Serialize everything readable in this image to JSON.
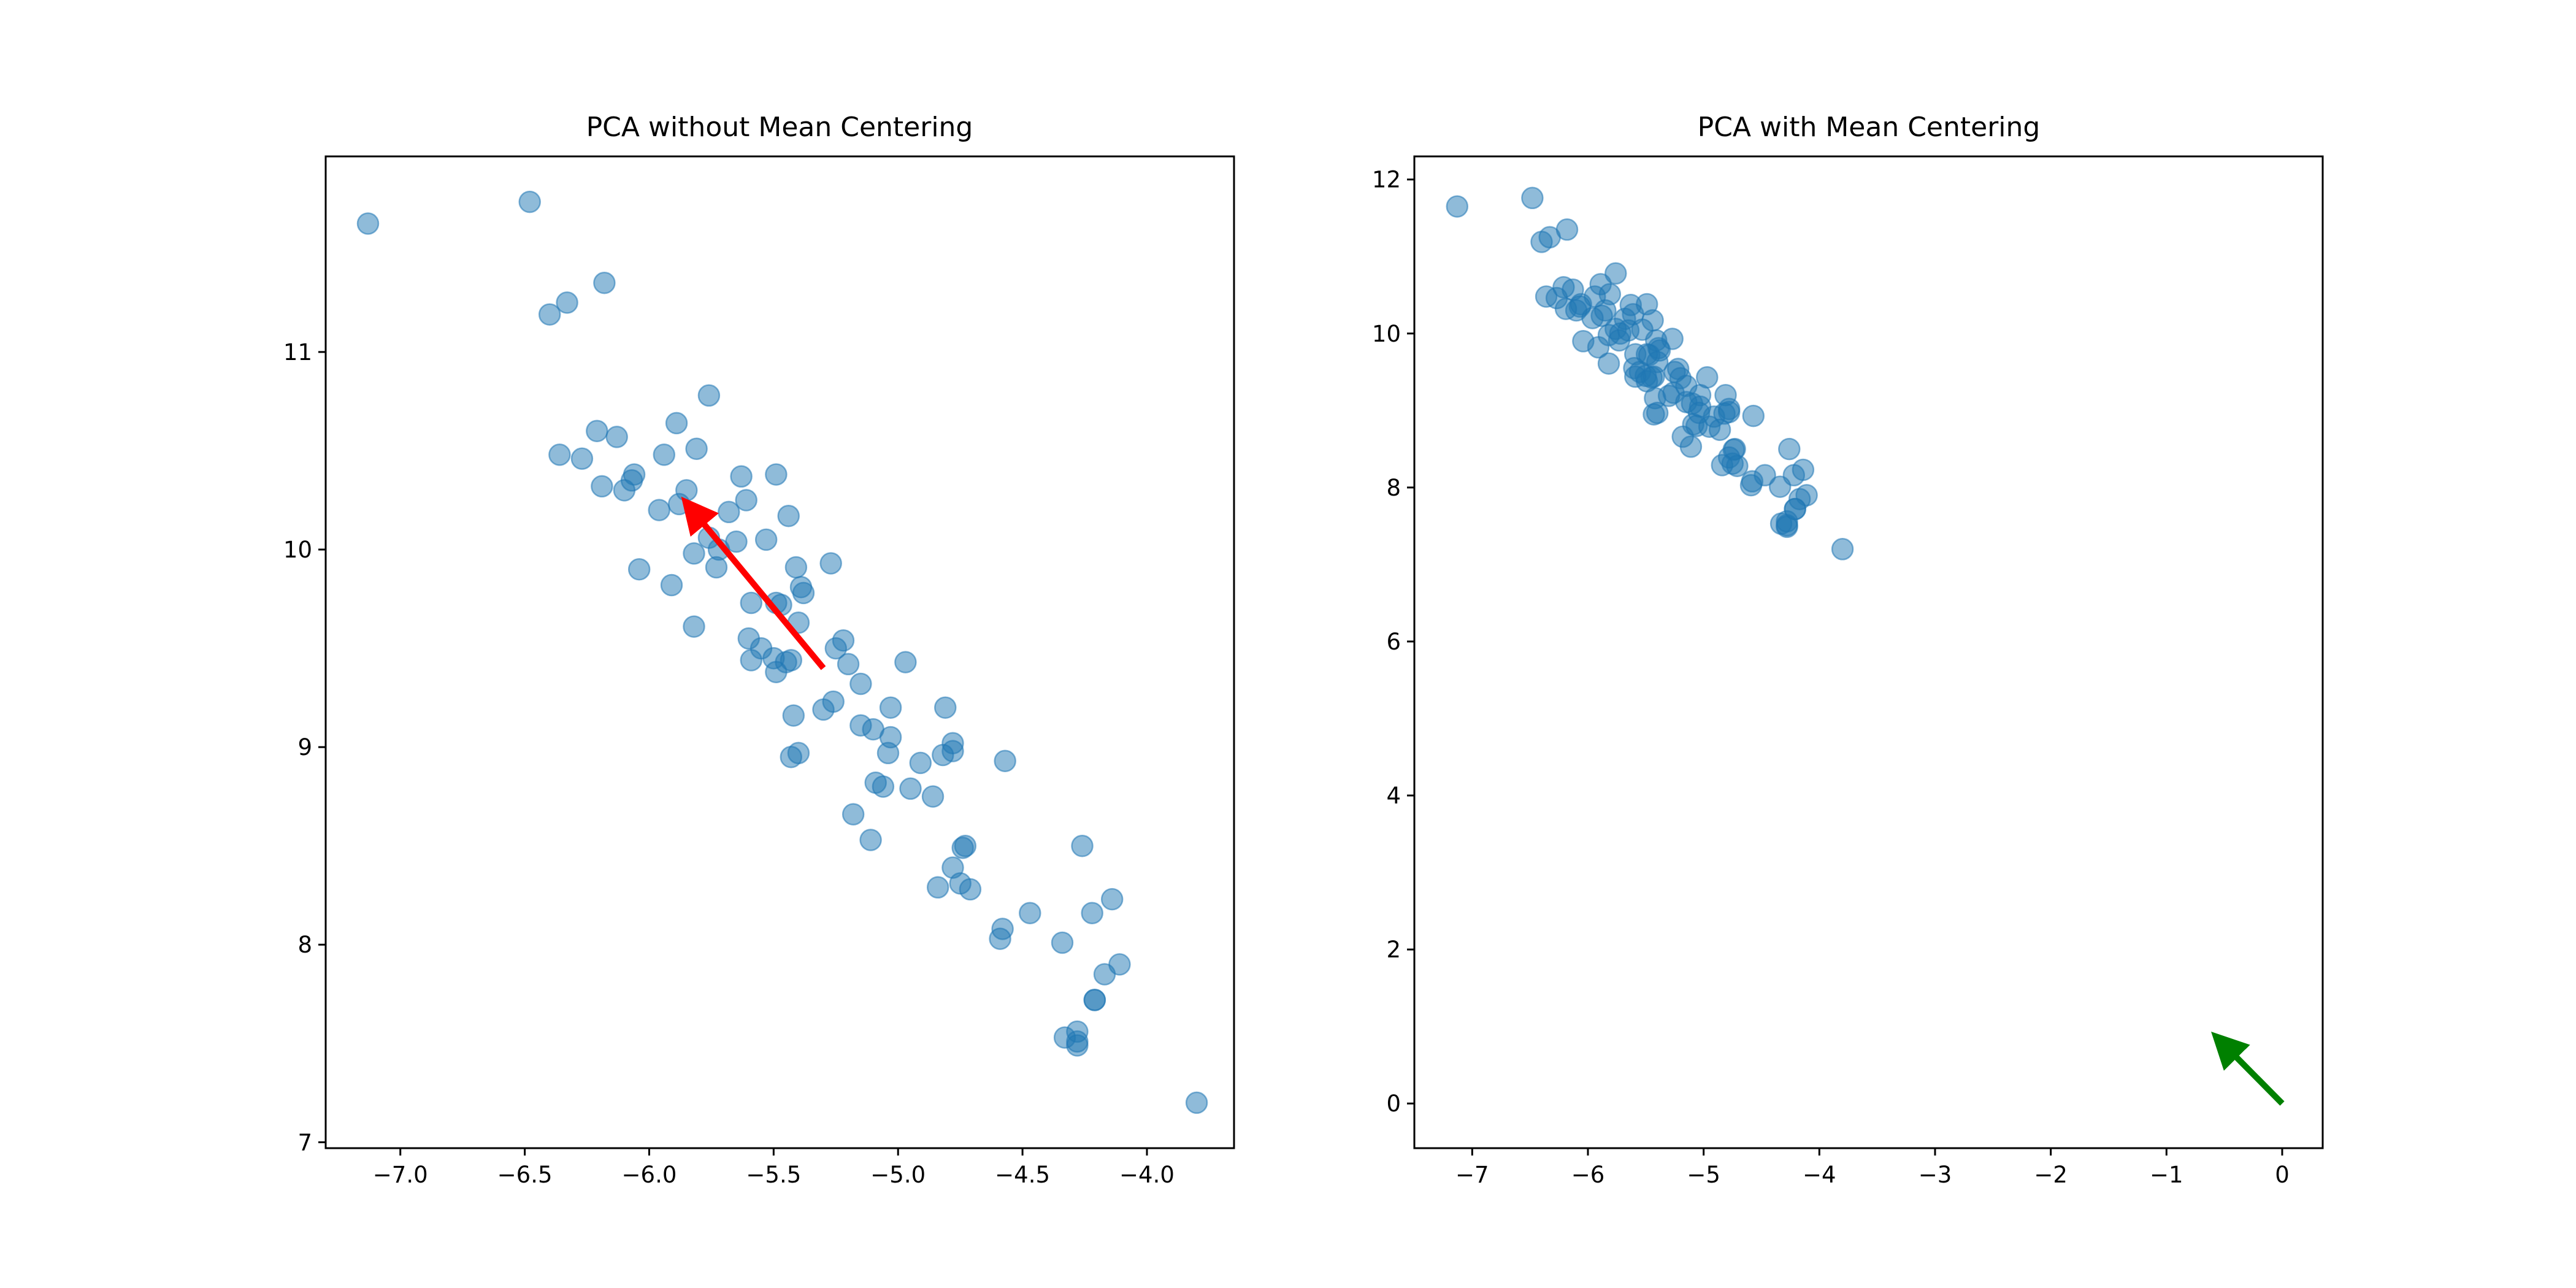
{
  "chart_data": [
    {
      "type": "scatter",
      "title": "PCA without Mean Centering",
      "xlabel": "",
      "ylabel": "",
      "xlim": [
        -7.3,
        -3.65
      ],
      "ylim": [
        6.97,
        11.99
      ],
      "xticks": [
        -7.0,
        -6.5,
        -6.0,
        -5.5,
        -5.0,
        -4.5,
        -4.0
      ],
      "xtick_labels": [
        "−7.0",
        "−6.5",
        "−6.0",
        "−5.5",
        "−5.0",
        "−4.5",
        "−4.0"
      ],
      "yticks": [
        7,
        8,
        9,
        10,
        11
      ],
      "ytick_labels": [
        "7",
        "8",
        "9",
        "10",
        "11"
      ],
      "grid": false,
      "point_color": "#1f77b4",
      "point_alpha": 0.5,
      "arrow": {
        "color": "#ff0000",
        "from": [
          -5.3,
          9.4
        ],
        "to": [
          -5.84,
          10.22
        ]
      },
      "points": [
        [
          -7.13,
          11.65
        ],
        [
          -6.48,
          11.76
        ],
        [
          -6.4,
          11.19
        ],
        [
          -6.33,
          11.25
        ],
        [
          -6.18,
          11.35
        ],
        [
          -5.76,
          10.78
        ],
        [
          -5.89,
          10.64
        ],
        [
          -6.21,
          10.6
        ],
        [
          -6.13,
          10.57
        ],
        [
          -5.81,
          10.51
        ],
        [
          -6.36,
          10.48
        ],
        [
          -6.27,
          10.46
        ],
        [
          -5.94,
          10.48
        ],
        [
          -6.06,
          10.38
        ],
        [
          -6.07,
          10.35
        ],
        [
          -6.1,
          10.3
        ],
        [
          -6.19,
          10.32
        ],
        [
          -5.63,
          10.37
        ],
        [
          -5.49,
          10.38
        ],
        [
          -5.85,
          10.3
        ],
        [
          -5.88,
          10.23
        ],
        [
          -5.61,
          10.25
        ],
        [
          -5.96,
          10.2
        ],
        [
          -5.68,
          10.19
        ],
        [
          -5.44,
          10.17
        ],
        [
          -5.76,
          10.06
        ],
        [
          -5.53,
          10.05
        ],
        [
          -5.65,
          10.04
        ],
        [
          -5.72,
          10.0
        ],
        [
          -5.82,
          9.98
        ],
        [
          -5.27,
          9.93
        ],
        [
          -6.04,
          9.9
        ],
        [
          -5.73,
          9.91
        ],
        [
          -5.41,
          9.91
        ],
        [
          -5.39,
          9.81
        ],
        [
          -5.38,
          9.78
        ],
        [
          -5.91,
          9.82
        ],
        [
          -5.59,
          9.73
        ],
        [
          -5.49,
          9.73
        ],
        [
          -5.47,
          9.72
        ],
        [
          -5.82,
          9.61
        ],
        [
          -5.4,
          9.63
        ],
        [
          -5.6,
          9.55
        ],
        [
          -5.55,
          9.5
        ],
        [
          -5.22,
          9.54
        ],
        [
          -5.25,
          9.5
        ],
        [
          -5.5,
          9.45
        ],
        [
          -5.59,
          9.44
        ],
        [
          -5.45,
          9.43
        ],
        [
          -5.43,
          9.44
        ],
        [
          -5.2,
          9.42
        ],
        [
          -4.97,
          9.43
        ],
        [
          -5.49,
          9.38
        ],
        [
          -5.15,
          9.32
        ],
        [
          -5.26,
          9.23
        ],
        [
          -5.3,
          9.19
        ],
        [
          -5.03,
          9.2
        ],
        [
          -4.81,
          9.2
        ],
        [
          -5.42,
          9.16
        ],
        [
          -5.15,
          9.11
        ],
        [
          -5.1,
          9.09
        ],
        [
          -5.03,
          9.05
        ],
        [
          -4.78,
          9.02
        ],
        [
          -4.78,
          8.98
        ],
        [
          -4.82,
          8.96
        ],
        [
          -5.4,
          8.97
        ],
        [
          -5.43,
          8.95
        ],
        [
          -4.57,
          8.93
        ],
        [
          -4.91,
          8.92
        ],
        [
          -5.04,
          8.97
        ],
        [
          -5.09,
          8.82
        ],
        [
          -5.06,
          8.8
        ],
        [
          -4.95,
          8.79
        ],
        [
          -4.86,
          8.75
        ],
        [
          -5.18,
          8.66
        ],
        [
          -5.11,
          8.53
        ],
        [
          -4.26,
          8.5
        ],
        [
          -4.73,
          8.5
        ],
        [
          -4.74,
          8.49
        ],
        [
          -4.78,
          8.39
        ],
        [
          -4.75,
          8.31
        ],
        [
          -4.84,
          8.29
        ],
        [
          -4.71,
          8.28
        ],
        [
          -4.14,
          8.23
        ],
        [
          -4.47,
          8.16
        ],
        [
          -4.22,
          8.16
        ],
        [
          -4.58,
          8.08
        ],
        [
          -4.59,
          8.03
        ],
        [
          -4.34,
          8.01
        ],
        [
          -4.11,
          7.9
        ],
        [
          -4.17,
          7.85
        ],
        [
          -4.21,
          7.72
        ],
        [
          -4.21,
          7.72
        ],
        [
          -4.33,
          7.53
        ],
        [
          -4.28,
          7.56
        ],
        [
          -4.28,
          7.49
        ],
        [
          -4.28,
          7.51
        ],
        [
          -3.8,
          7.2
        ]
      ]
    },
    {
      "type": "scatter",
      "title": "PCA with Mean Centering",
      "xlabel": "",
      "ylabel": "",
      "xlim": [
        -7.5,
        0.35
      ],
      "ylim": [
        -0.58,
        12.3
      ],
      "xticks": [
        -7,
        -6,
        -5,
        -4,
        -3,
        -2,
        -1,
        0
      ],
      "xtick_labels": [
        "−7",
        "−6",
        "−5",
        "−4",
        "−3",
        "−2",
        "−1",
        "0"
      ],
      "yticks": [
        0,
        2,
        4,
        6,
        8,
        10,
        12
      ],
      "ytick_labels": [
        "0",
        "2",
        "4",
        "6",
        "8",
        "10",
        "12"
      ],
      "grid": false,
      "point_color": "#1f77b4",
      "point_alpha": 0.5,
      "arrow": {
        "color": "#008000",
        "from": [
          0,
          0
        ],
        "to": [
          -0.54,
          0.82
        ]
      },
      "points": [
        [
          -7.13,
          11.65
        ],
        [
          -6.48,
          11.76
        ],
        [
          -6.4,
          11.19
        ],
        [
          -6.33,
          11.25
        ],
        [
          -6.18,
          11.35
        ],
        [
          -5.76,
          10.78
        ],
        [
          -5.89,
          10.64
        ],
        [
          -6.21,
          10.6
        ],
        [
          -6.13,
          10.57
        ],
        [
          -5.81,
          10.51
        ],
        [
          -6.36,
          10.48
        ],
        [
          -6.27,
          10.46
        ],
        [
          -5.94,
          10.48
        ],
        [
          -6.06,
          10.38
        ],
        [
          -6.07,
          10.35
        ],
        [
          -6.1,
          10.3
        ],
        [
          -6.19,
          10.32
        ],
        [
          -5.63,
          10.37
        ],
        [
          -5.49,
          10.38
        ],
        [
          -5.85,
          10.3
        ],
        [
          -5.88,
          10.23
        ],
        [
          -5.61,
          10.25
        ],
        [
          -5.96,
          10.2
        ],
        [
          -5.68,
          10.19
        ],
        [
          -5.44,
          10.17
        ],
        [
          -5.76,
          10.06
        ],
        [
          -5.53,
          10.05
        ],
        [
          -5.65,
          10.04
        ],
        [
          -5.72,
          10.0
        ],
        [
          -5.82,
          9.98
        ],
        [
          -5.27,
          9.93
        ],
        [
          -6.04,
          9.9
        ],
        [
          -5.73,
          9.91
        ],
        [
          -5.41,
          9.91
        ],
        [
          -5.39,
          9.81
        ],
        [
          -5.38,
          9.78
        ],
        [
          -5.91,
          9.82
        ],
        [
          -5.59,
          9.73
        ],
        [
          -5.49,
          9.73
        ],
        [
          -5.47,
          9.72
        ],
        [
          -5.82,
          9.61
        ],
        [
          -5.4,
          9.63
        ],
        [
          -5.6,
          9.55
        ],
        [
          -5.55,
          9.5
        ],
        [
          -5.22,
          9.54
        ],
        [
          -5.25,
          9.5
        ],
        [
          -5.5,
          9.45
        ],
        [
          -5.59,
          9.44
        ],
        [
          -5.45,
          9.43
        ],
        [
          -5.43,
          9.44
        ],
        [
          -5.2,
          9.42
        ],
        [
          -4.97,
          9.43
        ],
        [
          -5.49,
          9.38
        ],
        [
          -5.15,
          9.32
        ],
        [
          -5.26,
          9.23
        ],
        [
          -5.3,
          9.19
        ],
        [
          -5.03,
          9.2
        ],
        [
          -4.81,
          9.2
        ],
        [
          -5.42,
          9.16
        ],
        [
          -5.15,
          9.11
        ],
        [
          -5.1,
          9.09
        ],
        [
          -5.03,
          9.05
        ],
        [
          -4.78,
          9.02
        ],
        [
          -4.78,
          8.98
        ],
        [
          -4.82,
          8.96
        ],
        [
          -5.4,
          8.97
        ],
        [
          -5.43,
          8.95
        ],
        [
          -4.57,
          8.93
        ],
        [
          -4.91,
          8.92
        ],
        [
          -5.04,
          8.97
        ],
        [
          -5.09,
          8.82
        ],
        [
          -5.06,
          8.8
        ],
        [
          -4.95,
          8.79
        ],
        [
          -4.86,
          8.75
        ],
        [
          -5.18,
          8.66
        ],
        [
          -5.11,
          8.53
        ],
        [
          -4.26,
          8.5
        ],
        [
          -4.73,
          8.5
        ],
        [
          -4.74,
          8.49
        ],
        [
          -4.78,
          8.39
        ],
        [
          -4.75,
          8.31
        ],
        [
          -4.84,
          8.29
        ],
        [
          -4.71,
          8.28
        ],
        [
          -4.14,
          8.23
        ],
        [
          -4.47,
          8.16
        ],
        [
          -4.22,
          8.16
        ],
        [
          -4.58,
          8.08
        ],
        [
          -4.59,
          8.03
        ],
        [
          -4.34,
          8.01
        ],
        [
          -4.11,
          7.9
        ],
        [
          -4.17,
          7.85
        ],
        [
          -4.21,
          7.72
        ],
        [
          -4.21,
          7.72
        ],
        [
          -4.33,
          7.53
        ],
        [
          -4.28,
          7.56
        ],
        [
          -4.28,
          7.49
        ],
        [
          -4.28,
          7.51
        ],
        [
          -3.8,
          7.2
        ]
      ]
    }
  ]
}
